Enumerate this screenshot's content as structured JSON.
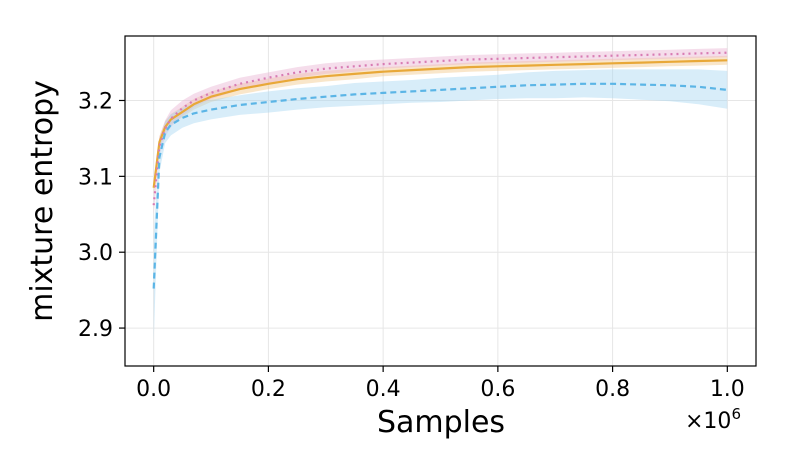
{
  "chart_data": {
    "type": "line",
    "xlabel": "Samples",
    "ylabel": "mixture entropy",
    "x_offset_text": "×10",
    "x_offset_exp": "6",
    "xlim": [
      -0.05,
      1.05
    ],
    "ylim": [
      2.85,
      3.285
    ],
    "x_ticks": [
      0.0,
      0.2,
      0.4,
      0.6,
      0.8,
      1.0
    ],
    "x_tick_labels": [
      "0.0",
      "0.2",
      "0.4",
      "0.6",
      "0.8",
      "1.0"
    ],
    "y_ticks": [
      2.9,
      3.0,
      3.1,
      3.2
    ],
    "y_tick_labels": [
      "2.9",
      "3.0",
      "3.1",
      "3.2"
    ],
    "grid": true,
    "legend": "none",
    "series": [
      {
        "color": "#e8a838",
        "dash": "solid",
        "band_color": "#f2c88a",
        "x": [
          0.0,
          0.01,
          0.02,
          0.03,
          0.05,
          0.07,
          0.1,
          0.15,
          0.2,
          0.25,
          0.3,
          0.35,
          0.4,
          0.45,
          0.5,
          0.55,
          0.6,
          0.65,
          0.7,
          0.75,
          0.8,
          0.85,
          0.9,
          0.95,
          1.0
        ],
        "y": [
          3.085,
          3.145,
          3.165,
          3.175,
          3.185,
          3.195,
          3.205,
          3.215,
          3.222,
          3.228,
          3.232,
          3.235,
          3.238,
          3.24,
          3.242,
          3.244,
          3.245,
          3.246,
          3.247,
          3.248,
          3.249,
          3.25,
          3.251,
          3.252,
          3.253
        ],
        "band": [
          0.01,
          0.008,
          0.008,
          0.007,
          0.007,
          0.007,
          0.007,
          0.007,
          0.007,
          0.007,
          0.007,
          0.007,
          0.006,
          0.006,
          0.006,
          0.006,
          0.006,
          0.006,
          0.006,
          0.006,
          0.006,
          0.006,
          0.006,
          0.006,
          0.006
        ]
      },
      {
        "color": "#d87bb3",
        "dash": "dotted",
        "band_color": "#e9b3d3",
        "x": [
          0.0,
          0.01,
          0.02,
          0.03,
          0.05,
          0.07,
          0.1,
          0.15,
          0.2,
          0.25,
          0.3,
          0.35,
          0.4,
          0.45,
          0.5,
          0.55,
          0.6,
          0.65,
          0.7,
          0.75,
          0.8,
          0.85,
          0.9,
          0.95,
          1.0
        ],
        "y": [
          3.062,
          3.14,
          3.163,
          3.176,
          3.19,
          3.2,
          3.21,
          3.222,
          3.23,
          3.237,
          3.242,
          3.245,
          3.248,
          3.25,
          3.252,
          3.254,
          3.255,
          3.256,
          3.257,
          3.258,
          3.259,
          3.26,
          3.261,
          3.262,
          3.263
        ],
        "band": [
          0.012,
          0.012,
          0.011,
          0.011,
          0.01,
          0.009,
          0.008,
          0.008,
          0.007,
          0.007,
          0.007,
          0.007,
          0.006,
          0.006,
          0.006,
          0.006,
          0.006,
          0.006,
          0.006,
          0.006,
          0.006,
          0.006,
          0.006,
          0.006,
          0.006
        ]
      },
      {
        "color": "#5bb5e6",
        "dash": "dashed",
        "band_color": "#a9d8f2",
        "x": [
          0.0,
          0.01,
          0.02,
          0.03,
          0.05,
          0.07,
          0.1,
          0.15,
          0.2,
          0.25,
          0.3,
          0.35,
          0.4,
          0.45,
          0.5,
          0.55,
          0.6,
          0.65,
          0.7,
          0.75,
          0.8,
          0.85,
          0.9,
          0.95,
          1.0
        ],
        "y": [
          2.952,
          3.125,
          3.158,
          3.168,
          3.177,
          3.183,
          3.188,
          3.194,
          3.198,
          3.202,
          3.205,
          3.208,
          3.21,
          3.212,
          3.214,
          3.216,
          3.218,
          3.22,
          3.221,
          3.222,
          3.222,
          3.221,
          3.22,
          3.218,
          3.214
        ],
        "band": [
          0.07,
          0.02,
          0.014,
          0.014,
          0.013,
          0.013,
          0.013,
          0.013,
          0.014,
          0.014,
          0.014,
          0.015,
          0.015,
          0.015,
          0.016,
          0.016,
          0.016,
          0.017,
          0.018,
          0.018,
          0.019,
          0.02,
          0.021,
          0.023,
          0.025
        ]
      }
    ]
  }
}
